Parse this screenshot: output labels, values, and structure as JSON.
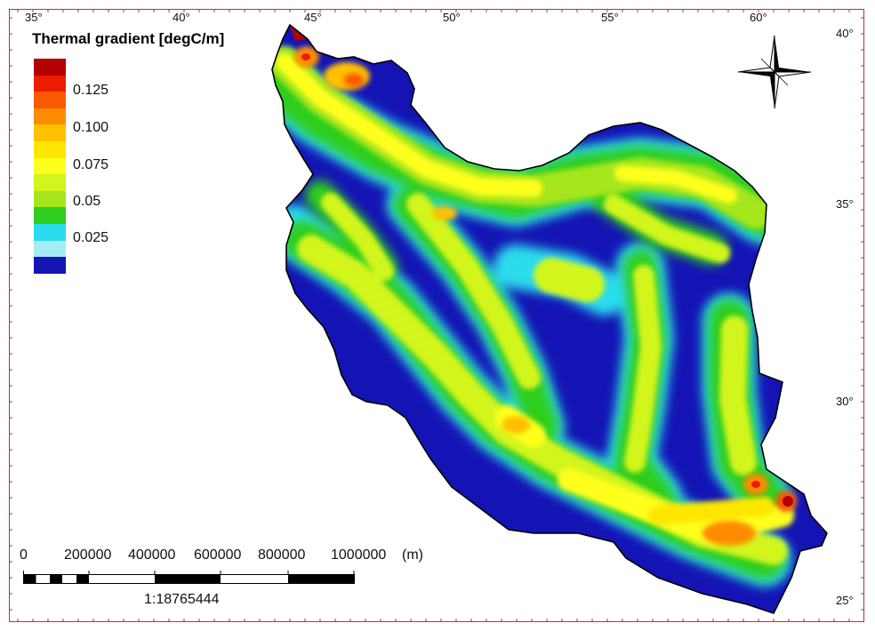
{
  "map": {
    "legend_title": "Thermal gradient [degC/m]",
    "legend_colors": [
      "#b30000",
      "#ee1c00",
      "#f85a00",
      "#fd8c00",
      "#ffc000",
      "#ffe600",
      "#ffff1e",
      "#d2f51e",
      "#a6e61c",
      "#2fcd1e",
      "#2adcec",
      "#a6ecf6",
      "#1414b4"
    ],
    "legend_labels": [
      "0.125",
      "0.100",
      "0.075",
      "0.05",
      "0.025"
    ],
    "top_longitude_labels": [
      "35°",
      "40°",
      "45°",
      "50°",
      "55°",
      "60°"
    ],
    "right_latitude_labels": [
      "40°",
      "35°",
      "30°",
      "25°"
    ],
    "scale_labels": [
      "0",
      "200000",
      "400000",
      "600000",
      "800000",
      "1000000",
      "(m)"
    ],
    "scale_ratio": "1:18765444",
    "compass": "north-arrow-icon"
  }
}
